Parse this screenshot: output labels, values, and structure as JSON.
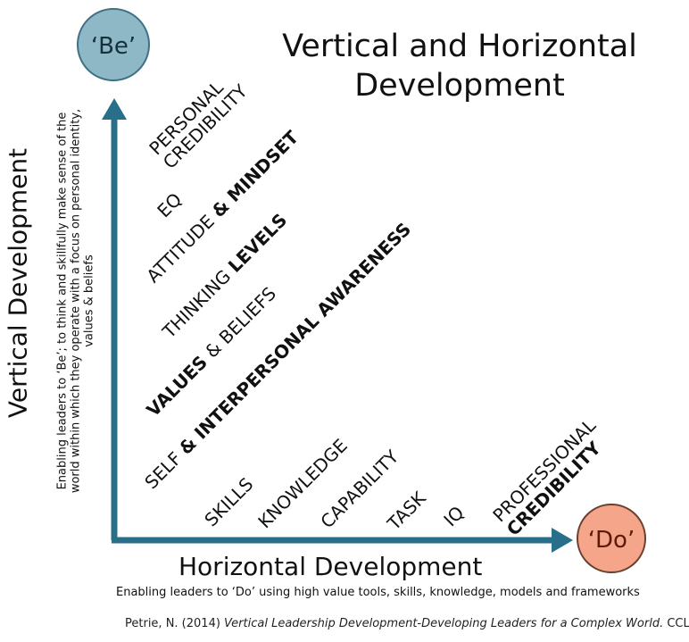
{
  "title": {
    "line1": "Vertical and Horizontal",
    "line2": "Development"
  },
  "be_label": "‘Be’",
  "do_label": "‘Do’",
  "colors": {
    "axis": "#2a6f8a",
    "be_circle": "#8fb8c6",
    "do_circle": "#f4a58a"
  },
  "vertical": {
    "title": "Vertical Development",
    "desc_line1": "Enabling leaders to ‘Be’; to think and skillfully make sense of the",
    "desc_line2": "world within which they operate with a focus on personal identity,",
    "desc_line3": "values & beliefs"
  },
  "horizontal": {
    "title": "Horizontal Development",
    "desc": "Enabling leaders to ‘Do’ using high value tools, skills, knowledge, models and frameworks"
  },
  "items": {
    "personal_credibility": {
      "line1": "PERSONAL",
      "line2": "CREDIBILITY"
    },
    "eq": "EQ",
    "attitude": {
      "normal": "ATTITUDE ",
      "bold": "& MINDSET"
    },
    "thinking": {
      "normal": "THINKING ",
      "bold": "LEVELS"
    },
    "values": {
      "bold": "VALUES ",
      "normal": "& BELIEFS"
    },
    "self": {
      "normal": "SELF ",
      "bold": "& INTERPERSONAL AWARENESS"
    },
    "skills": "SKILLS",
    "knowledge": "KNOWLEDGE",
    "capability": "CAPABILITY",
    "task": "TASK",
    "iq": "IQ",
    "professional": {
      "line1": "PROFESSIONAL",
      "line2": "CREDIBILITY"
    }
  },
  "citation": {
    "prefix": "Petrie, N. (2014) ",
    "title": "Vertical Leadership Development-Developing Leaders for a Complex World.",
    "suffix": " CCL."
  }
}
